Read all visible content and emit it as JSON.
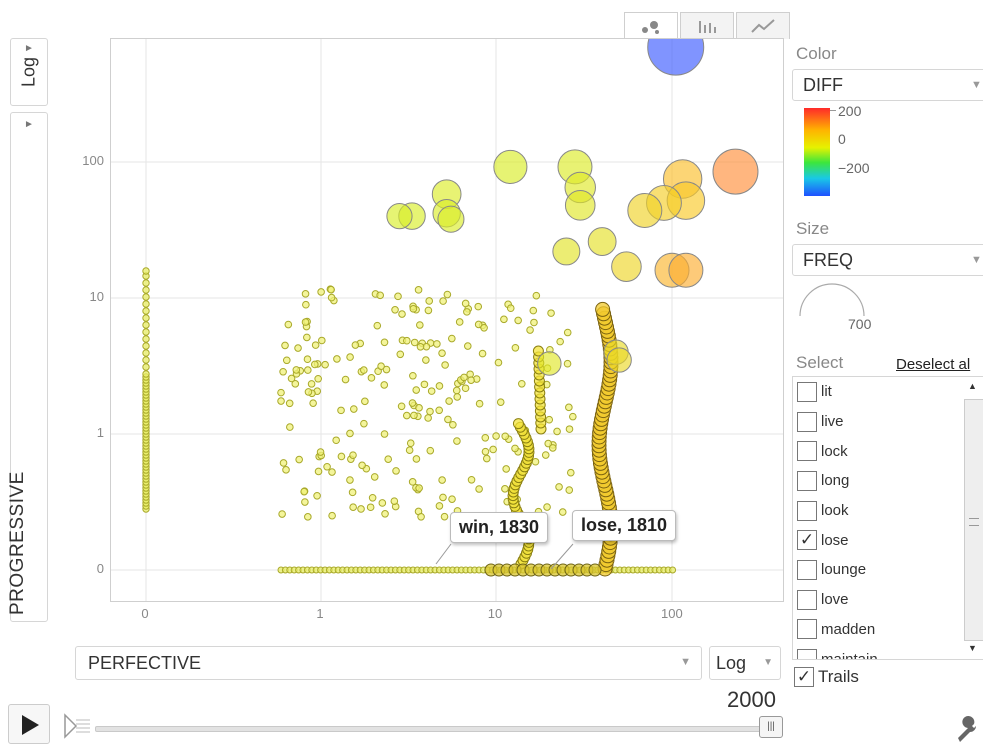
{
  "yaxis": {
    "scale_label": "Log",
    "field_label": "PROGRESSIVE"
  },
  "xaxis": {
    "field_label": "PERFECTIVE",
    "scale_label": "Log"
  },
  "chart_tabs": [
    {
      "name": "bubble-chart-tab",
      "icon": "bubble-icon",
      "active": true
    },
    {
      "name": "bar-chart-tab",
      "icon": "bar-icon",
      "active": false
    },
    {
      "name": "line-chart-tab",
      "icon": "line-icon",
      "active": false
    }
  ],
  "color_panel": {
    "title": "Color",
    "field": "DIFF",
    "legend_ticks": [
      "200",
      "0",
      "−200"
    ]
  },
  "size_panel": {
    "title": "Size",
    "field": "FREQ",
    "size_value": "700"
  },
  "select_panel": {
    "title": "Select",
    "deselect_label": "Deselect al",
    "items": [
      {
        "label": "lit",
        "checked": false
      },
      {
        "label": "live",
        "checked": false
      },
      {
        "label": "lock",
        "checked": false
      },
      {
        "label": "long",
        "checked": false
      },
      {
        "label": "look",
        "checked": false
      },
      {
        "label": "lose",
        "checked": true
      },
      {
        "label": "lounge",
        "checked": false
      },
      {
        "label": "love",
        "checked": false
      },
      {
        "label": "madden",
        "checked": false
      },
      {
        "label": "maintain",
        "checked": false
      }
    ],
    "trails_label": "Trails",
    "trails_checked": true
  },
  "playback": {
    "year": "2000"
  },
  "tooltips": [
    {
      "text": "win, 1830"
    },
    {
      "text": "lose, 1810"
    }
  ],
  "chart_data": {
    "type": "scatter",
    "xlabel": "PERFECTIVE",
    "ylabel": "PROGRESSIVE",
    "x_scale": "log",
    "y_scale": "log",
    "x_ticks": [
      "0",
      "1",
      "10",
      "100"
    ],
    "y_ticks": [
      "0",
      "1",
      "10",
      "100"
    ],
    "grid": true,
    "bubbles": [
      {
        "x": 105,
        "y": 700,
        "diff": -220,
        "size": 1.0
      },
      {
        "x": 230,
        "y": 85,
        "diff": 150,
        "size": 0.75
      },
      {
        "x": 115,
        "y": 75,
        "diff": 90,
        "size": 0.6
      },
      {
        "x": 120,
        "y": 52,
        "diff": 75,
        "size": 0.58
      },
      {
        "x": 90,
        "y": 50,
        "diff": 65,
        "size": 0.52
      },
      {
        "x": 70,
        "y": 44,
        "diff": 55,
        "size": 0.5
      },
      {
        "x": 28,
        "y": 92,
        "diff": 10,
        "size": 0.5
      },
      {
        "x": 12,
        "y": 92,
        "diff": 5,
        "size": 0.48
      },
      {
        "x": 30,
        "y": 65,
        "diff": 15,
        "size": 0.42
      },
      {
        "x": 30,
        "y": 48,
        "diff": 20,
        "size": 0.4
      },
      {
        "x": 5.2,
        "y": 58,
        "diff": 8,
        "size": 0.38
      },
      {
        "x": 5.2,
        "y": 42,
        "diff": 6,
        "size": 0.35
      },
      {
        "x": 5.5,
        "y": 38,
        "diff": 6,
        "size": 0.32
      },
      {
        "x": 3.3,
        "y": 40,
        "diff": 4,
        "size": 0.33
      },
      {
        "x": 2.8,
        "y": 40,
        "diff": 4,
        "size": 0.3
      },
      {
        "x": 100,
        "y": 16,
        "diff": 100,
        "size": 0.5
      },
      {
        "x": 120,
        "y": 16,
        "diff": 110,
        "size": 0.5
      },
      {
        "x": 55,
        "y": 17,
        "diff": 50,
        "size": 0.4
      },
      {
        "x": 40,
        "y": 26,
        "diff": 30,
        "size": 0.36
      },
      {
        "x": 25,
        "y": 22,
        "diff": 25,
        "size": 0.34
      },
      {
        "x": 48,
        "y": 4,
        "diff": 40,
        "size": 0.28
      },
      {
        "x": 50,
        "y": 3.5,
        "diff": 45,
        "size": 0.28
      },
      {
        "x": 20,
        "y": 3.3,
        "diff": 20,
        "size": 0.26
      }
    ]
  }
}
